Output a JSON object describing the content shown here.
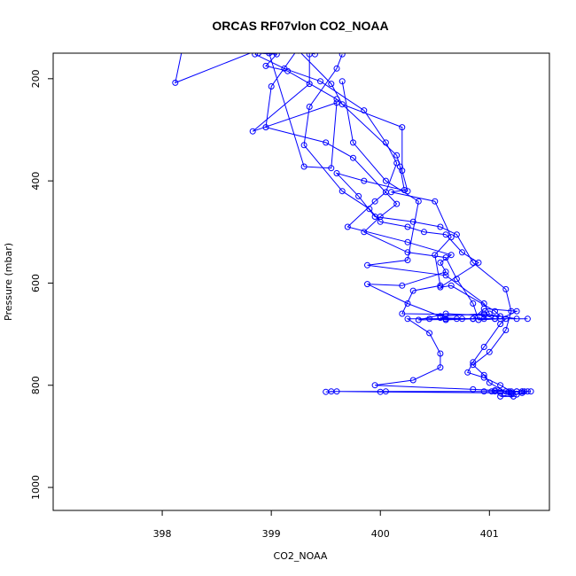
{
  "chart_data": {
    "type": "line",
    "title": "ORCAS RF07vlon CO2_NOAA",
    "xlabel": "CO2_NOAA",
    "ylabel": "Pressure (mbar)",
    "xlim": [
      397.0,
      401.55
    ],
    "ylim": [
      1045,
      150
    ],
    "y_reversed": true,
    "x_ticks": [
      398,
      399,
      400,
      401
    ],
    "y_ticks": [
      200,
      400,
      600,
      800,
      1000
    ],
    "grid": false,
    "series": [
      {
        "color": "#0000ff",
        "marker": "open-circle",
        "points": [
          [
            398.2,
            125
          ],
          [
            398.12,
            208
          ],
          [
            399.28,
            110
          ],
          [
            399.35,
            152
          ],
          [
            399.35,
            210
          ],
          [
            398.83,
            303
          ],
          [
            399.6,
            247
          ],
          [
            399.55,
            375
          ],
          [
            399.3,
            372
          ],
          [
            398.98,
            150
          ],
          [
            398.88,
            150
          ],
          [
            399.05,
            152
          ],
          [
            398.95,
            175
          ],
          [
            399.15,
            185
          ],
          [
            399.6,
            240
          ],
          [
            400.15,
            350
          ],
          [
            400.18,
            372
          ],
          [
            400.22,
            418
          ],
          [
            400.1,
            422
          ],
          [
            400.5,
            440
          ],
          [
            400.65,
            510
          ],
          [
            400.5,
            545
          ],
          [
            400.55,
            605
          ],
          [
            400.3,
            615
          ],
          [
            400.2,
            660
          ],
          [
            400.95,
            662
          ],
          [
            401.05,
            670
          ],
          [
            400.75,
            670
          ],
          [
            400.25,
            670
          ],
          [
            400.45,
            698
          ],
          [
            400.55,
            738
          ],
          [
            400.55,
            765
          ],
          [
            400.3,
            790
          ],
          [
            399.95,
            800
          ],
          [
            400.85,
            808
          ],
          [
            401.05,
            810
          ],
          [
            401.3,
            812
          ],
          [
            401.15,
            812
          ],
          [
            401.05,
            812
          ],
          [
            400.95,
            812
          ],
          [
            400.05,
            812
          ],
          [
            399.6,
            812
          ],
          [
            399.5,
            813
          ],
          [
            399.55,
            812
          ],
          [
            400.0,
            813
          ],
          [
            401.1,
            815
          ],
          [
            401.2,
            815
          ],
          [
            401.25,
            818
          ],
          [
            401.3,
            815
          ],
          [
            401.35,
            812
          ],
          [
            401.32,
            812
          ],
          [
            401.25,
            812
          ],
          [
            401.2,
            818
          ],
          [
            401.1,
            822
          ],
          [
            401.22,
            822
          ],
          [
            401.0,
            795
          ],
          [
            400.95,
            780
          ],
          [
            400.85,
            760
          ],
          [
            401.0,
            735
          ],
          [
            401.15,
            692
          ],
          [
            401.2,
            655
          ],
          [
            401.15,
            612
          ],
          [
            400.85,
            560
          ],
          [
            400.7,
            505
          ],
          [
            400.55,
            490
          ],
          [
            400.3,
            480
          ],
          [
            399.95,
            470
          ],
          [
            399.8,
            430
          ],
          [
            399.6,
            385
          ],
          [
            399.85,
            400
          ],
          [
            400.25,
            420
          ],
          [
            400.2,
            380
          ],
          [
            400.2,
            295
          ],
          [
            399.65,
            250
          ],
          [
            399.55,
            210
          ],
          [
            399.25,
            145
          ]
        ]
      },
      {
        "color": "#0000ff",
        "marker": "open-circle",
        "points": [
          [
            398.85,
            152
          ],
          [
            399.12,
            180
          ],
          [
            399.45,
            205
          ],
          [
            399.85,
            262
          ],
          [
            400.05,
            325
          ],
          [
            400.15,
            365
          ],
          [
            400.05,
            422
          ],
          [
            399.95,
            440
          ],
          [
            399.7,
            490
          ],
          [
            400.25,
            520
          ],
          [
            400.65,
            545
          ],
          [
            400.55,
            560
          ],
          [
            400.6,
            578
          ],
          [
            400.2,
            605
          ],
          [
            399.88,
            602
          ],
          [
            400.25,
            640
          ],
          [
            400.55,
            665
          ],
          [
            400.95,
            660
          ],
          [
            401.25,
            670
          ],
          [
            400.85,
            670
          ],
          [
            400.6,
            670
          ],
          [
            400.45,
            670
          ],
          [
            400.7,
            670
          ],
          [
            401.05,
            670
          ],
          [
            401.35,
            670
          ]
        ]
      },
      {
        "color": "#0000ff",
        "marker": "open-circle",
        "points": [
          [
            399.65,
            205
          ],
          [
            399.75,
            325
          ],
          [
            400.05,
            400
          ],
          [
            400.35,
            440
          ],
          [
            400.25,
            555
          ],
          [
            399.88,
            565
          ],
          [
            400.6,
            585
          ],
          [
            400.95,
            640
          ],
          [
            401.0,
            660
          ],
          [
            400.95,
            670
          ],
          [
            400.35,
            672
          ],
          [
            400.6,
            660
          ],
          [
            401.1,
            665
          ],
          [
            401.05,
            655
          ],
          [
            400.65,
            605
          ],
          [
            400.55,
            608
          ],
          [
            400.9,
            560
          ],
          [
            400.75,
            540
          ],
          [
            400.6,
            505
          ],
          [
            400.4,
            500
          ],
          [
            400.25,
            490
          ],
          [
            400.0,
            480
          ],
          [
            399.9,
            455
          ],
          [
            399.65,
            420
          ],
          [
            399.3,
            330
          ],
          [
            399.35,
            255
          ],
          [
            399.6,
            180
          ],
          [
            399.65,
            152
          ]
        ]
      },
      {
        "color": "#0000ff",
        "marker": "open-circle",
        "points": [
          [
            399.4,
            152
          ],
          [
            399.25,
            140
          ],
          [
            399.0,
            215
          ],
          [
            398.95,
            295
          ],
          [
            399.5,
            325
          ],
          [
            399.75,
            355
          ],
          [
            400.15,
            445
          ],
          [
            400.0,
            470
          ],
          [
            399.85,
            500
          ],
          [
            400.25,
            540
          ],
          [
            400.6,
            550
          ],
          [
            400.7,
            592
          ],
          [
            400.85,
            640
          ],
          [
            400.9,
            672
          ],
          [
            401.1,
            670
          ],
          [
            401.25,
            655
          ],
          [
            400.95,
            650
          ],
          [
            400.85,
            670
          ],
          [
            400.6,
            672
          ],
          [
            400.55,
            668
          ],
          [
            400.85,
            670
          ],
          [
            401.15,
            670
          ],
          [
            401.1,
            680
          ],
          [
            400.95,
            725
          ],
          [
            400.85,
            755
          ],
          [
            400.8,
            775
          ],
          [
            400.95,
            785
          ],
          [
            401.1,
            800
          ],
          [
            401.2,
            812
          ],
          [
            401.3,
            812
          ],
          [
            401.38,
            812
          ],
          [
            401.25,
            812
          ],
          [
            401.1,
            812
          ],
          [
            401.02,
            812
          ],
          [
            401.18,
            812
          ]
        ]
      }
    ]
  }
}
